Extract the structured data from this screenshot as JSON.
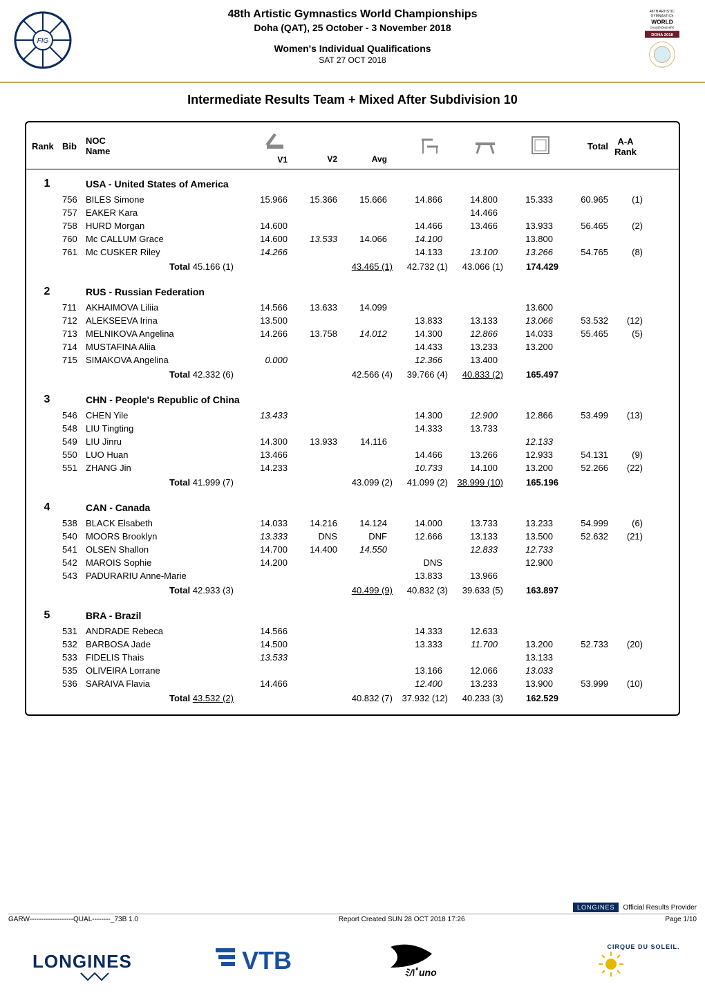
{
  "header": {
    "event_title": "48th Artistic Gymnastics World Championships",
    "event_location": "Doha (QAT), 25 October - 3 November 2018",
    "event_sub1": "Women's Individual Qualifications",
    "event_sub2": "SAT 27 OCT 2018",
    "right_badge": {
      "line1": "48TH ARTISTIC",
      "line2": "GYMNASTICS",
      "line3": "WORLD",
      "line4": "CHAMPIONSHIPS",
      "line5": "DOHA 2018"
    }
  },
  "page_title": "Intermediate Results Team + Mixed After Subdivision 10",
  "columns": {
    "rank": "Rank",
    "bib": "Bib",
    "noc": "NOC",
    "name": "Name",
    "v1": "V1",
    "v2": "V2",
    "avg": "Avg",
    "total": "Total",
    "aa_rank": "A-A\nRank"
  },
  "total_label": "Total",
  "teams": [
    {
      "rank": "1",
      "name": "USA - United States of America",
      "athletes": [
        {
          "bib": "756",
          "name": "BILES Simone",
          "v1": "15.966",
          "v2": "15.366",
          "avg": "15.666",
          "ub": "14.866",
          "bb": "14.800",
          "fx": "15.333",
          "total": "60.965",
          "aarank": "(1)",
          "italic": {}
        },
        {
          "bib": "757",
          "name": "EAKER Kara",
          "v1": "",
          "v2": "",
          "avg": "",
          "ub": "",
          "bb": "14.466",
          "fx": "",
          "total": "",
          "aarank": "",
          "italic": {}
        },
        {
          "bib": "758",
          "name": "HURD Morgan",
          "v1": "14.600",
          "v2": "",
          "avg": "",
          "ub": "14.466",
          "bb": "13.466",
          "fx": "13.933",
          "total": "56.465",
          "aarank": "(2)",
          "italic": {}
        },
        {
          "bib": "760",
          "name": "Mc CALLUM Grace",
          "v1": "14.600",
          "v2": "13.533",
          "avg": "14.066",
          "ub": "14.100",
          "bb": "",
          "fx": "13.800",
          "total": "",
          "aarank": "",
          "italic": {
            "v2": true,
            "ub": true
          }
        },
        {
          "bib": "761",
          "name": "Mc CUSKER Riley",
          "v1": "14.266",
          "v2": "",
          "avg": "",
          "ub": "14.133",
          "bb": "13.100",
          "fx": "13.266",
          "total": "54.765",
          "aarank": "(8)",
          "italic": {
            "v1": true,
            "bb": true,
            "fx": true
          }
        }
      ],
      "totals": {
        "vt": "45.166 (1)",
        "ub": "43.465 (1)",
        "bb": "42.732 (1)",
        "fx": "43.066 (1)",
        "team": "174.429",
        "underline": {
          "ub": true
        }
      }
    },
    {
      "rank": "2",
      "name": "RUS - Russian Federation",
      "athletes": [
        {
          "bib": "711",
          "name": "AKHAIMOVA Liliia",
          "v1": "14.566",
          "v2": "13.633",
          "avg": "14.099",
          "ub": "",
          "bb": "",
          "fx": "13.600",
          "total": "",
          "aarank": "",
          "italic": {}
        },
        {
          "bib": "712",
          "name": "ALEKSEEVA Irina",
          "v1": "13.500",
          "v2": "",
          "avg": "",
          "ub": "13.833",
          "bb": "13.133",
          "fx": "13.066",
          "total": "53.532",
          "aarank": "(12)",
          "italic": {
            "fx": true
          }
        },
        {
          "bib": "713",
          "name": "MELNIKOVA Angelina",
          "v1": "14.266",
          "v2": "13.758",
          "avg": "14.012",
          "ub": "14.300",
          "bb": "12.866",
          "fx": "14.033",
          "total": "55.465",
          "aarank": "(5)",
          "italic": {
            "avg": true,
            "bb": true
          }
        },
        {
          "bib": "714",
          "name": "MUSTAFINA Aliia",
          "v1": "",
          "v2": "",
          "avg": "",
          "ub": "14.433",
          "bb": "13.233",
          "fx": "13.200",
          "total": "",
          "aarank": "",
          "italic": {}
        },
        {
          "bib": "715",
          "name": "SIMAKOVA Angelina",
          "v1": "0.000",
          "v2": "",
          "avg": "",
          "ub": "12.366",
          "bb": "13.400",
          "fx": "",
          "total": "",
          "aarank": "",
          "italic": {
            "v1": true,
            "ub": true
          }
        }
      ],
      "totals": {
        "vt": "42.332 (6)",
        "ub": "42.566 (4)",
        "bb": "39.766 (4)",
        "fx": "40.833 (2)",
        "team": "165.497",
        "underline": {
          "fx": true
        }
      }
    },
    {
      "rank": "3",
      "name": "CHN - People's Republic of China",
      "athletes": [
        {
          "bib": "546",
          "name": "CHEN Yile",
          "v1": "13.433",
          "v2": "",
          "avg": "",
          "ub": "14.300",
          "bb": "12.900",
          "fx": "12.866",
          "total": "53.499",
          "aarank": "(13)",
          "italic": {
            "v1": true,
            "bb": true
          }
        },
        {
          "bib": "548",
          "name": "LIU Tingting",
          "v1": "",
          "v2": "",
          "avg": "",
          "ub": "14.333",
          "bb": "13.733",
          "fx": "",
          "total": "",
          "aarank": "",
          "italic": {}
        },
        {
          "bib": "549",
          "name": "LIU Jinru",
          "v1": "14.300",
          "v2": "13.933",
          "avg": "14.116",
          "ub": "",
          "bb": "",
          "fx": "12.133",
          "total": "",
          "aarank": "",
          "italic": {
            "fx": true
          }
        },
        {
          "bib": "550",
          "name": "LUO Huan",
          "v1": "13.466",
          "v2": "",
          "avg": "",
          "ub": "14.466",
          "bb": "13.266",
          "fx": "12.933",
          "total": "54.131",
          "aarank": "(9)",
          "italic": {}
        },
        {
          "bib": "551",
          "name": "ZHANG Jin",
          "v1": "14.233",
          "v2": "",
          "avg": "",
          "ub": "10.733",
          "bb": "14.100",
          "fx": "13.200",
          "total": "52.266",
          "aarank": "(22)",
          "italic": {
            "ub": true
          }
        }
      ],
      "totals": {
        "vt": "41.999 (7)",
        "ub": "43.099 (2)",
        "bb": "41.099 (2)",
        "fx": "38.999 (10)",
        "team": "165.196",
        "underline": {
          "fx": true
        }
      }
    },
    {
      "rank": "4",
      "name": "CAN - Canada",
      "athletes": [
        {
          "bib": "538",
          "name": "BLACK Elsabeth",
          "v1": "14.033",
          "v2": "14.216",
          "avg": "14.124",
          "ub": "14.000",
          "bb": "13.733",
          "fx": "13.233",
          "total": "54.999",
          "aarank": "(6)",
          "italic": {}
        },
        {
          "bib": "540",
          "name": "MOORS Brooklyn",
          "v1": "13.333",
          "v2": "DNS",
          "avg": "DNF",
          "ub": "12.666",
          "bb": "13.133",
          "fx": "13.500",
          "total": "52.632",
          "aarank": "(21)",
          "italic": {
            "v1": true
          }
        },
        {
          "bib": "541",
          "name": "OLSEN Shallon",
          "v1": "14.700",
          "v2": "14.400",
          "avg": "14.550",
          "ub": "",
          "bb": "12.833",
          "fx": "12.733",
          "total": "",
          "aarank": "",
          "italic": {
            "avg": true,
            "bb": true,
            "fx": true
          }
        },
        {
          "bib": "542",
          "name": "MAROIS Sophie",
          "v1": "14.200",
          "v2": "",
          "avg": "",
          "ub": "DNS",
          "bb": "",
          "fx": "12.900",
          "total": "",
          "aarank": "",
          "italic": {}
        },
        {
          "bib": "543",
          "name": "PADURARIU Anne-Marie",
          "v1": "",
          "v2": "",
          "avg": "",
          "ub": "13.833",
          "bb": "13.966",
          "fx": "",
          "total": "",
          "aarank": "",
          "italic": {}
        }
      ],
      "totals": {
        "vt": "42.933 (3)",
        "ub": "40.499 (9)",
        "bb": "40.832 (3)",
        "fx": "39.633 (5)",
        "team": "163.897",
        "underline": {
          "ub": true
        }
      }
    },
    {
      "rank": "5",
      "name": "BRA - Brazil",
      "athletes": [
        {
          "bib": "531",
          "name": "ANDRADE Rebeca",
          "v1": "14.566",
          "v2": "",
          "avg": "",
          "ub": "14.333",
          "bb": "12.633",
          "fx": "",
          "total": "",
          "aarank": "",
          "italic": {}
        },
        {
          "bib": "532",
          "name": "BARBOSA Jade",
          "v1": "14.500",
          "v2": "",
          "avg": "",
          "ub": "13.333",
          "bb": "11.700",
          "fx": "13.200",
          "total": "52.733",
          "aarank": "(20)",
          "italic": {
            "bb": true
          }
        },
        {
          "bib": "533",
          "name": "FIDELIS Thais",
          "v1": "13.533",
          "v2": "",
          "avg": "",
          "ub": "",
          "bb": "",
          "fx": "13.133",
          "total": "",
          "aarank": "",
          "italic": {
            "v1": true
          }
        },
        {
          "bib": "535",
          "name": "OLIVEIRA Lorrane",
          "v1": "",
          "v2": "",
          "avg": "",
          "ub": "13.166",
          "bb": "12.066",
          "fx": "13.033",
          "total": "",
          "aarank": "",
          "italic": {
            "fx": true
          }
        },
        {
          "bib": "536",
          "name": "SARAIVA Flavia",
          "v1": "14.466",
          "v2": "",
          "avg": "",
          "ub": "12.400",
          "bb": "13.233",
          "fx": "13.900",
          "total": "53.999",
          "aarank": "(10)",
          "italic": {
            "ub": true
          }
        }
      ],
      "totals": {
        "vt": "43.532 (2)",
        "ub": "40.832 (7)",
        "bb": "37.932 (12)",
        "fx": "40.233 (3)",
        "team": "162.529",
        "underline": {
          "vt": true
        }
      }
    }
  ],
  "footer": {
    "provider_label": "Official Results Provider",
    "code": "GARW-------------------QUAL--------_73B 1.0",
    "report": "Report Created SUN 28 OCT 2018 17:26",
    "page": "Page 1/10",
    "longines": "LONGINES",
    "vtb": "VTB",
    "mizuno": "MIZUNO",
    "cirque": "CIRQUE DU SOLEIL."
  },
  "colors": {
    "accent_gold": "#c8a858",
    "navy": "#0a2a5c",
    "maroon": "#6b1f2a",
    "text": "#000000"
  }
}
